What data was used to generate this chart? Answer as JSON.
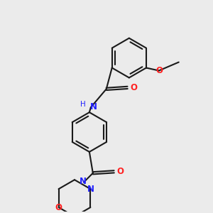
{
  "bg_color": "#ebebeb",
  "bond_color": "#1a1a1a",
  "N_color": "#2121ff",
  "O_color": "#ff2121",
  "line_width": 1.5,
  "dbo": 0.018,
  "figsize": [
    3.0,
    3.0
  ],
  "dpi": 100,
  "xlim": [
    0.0,
    3.0
  ],
  "ylim": [
    0.0,
    3.0
  ]
}
